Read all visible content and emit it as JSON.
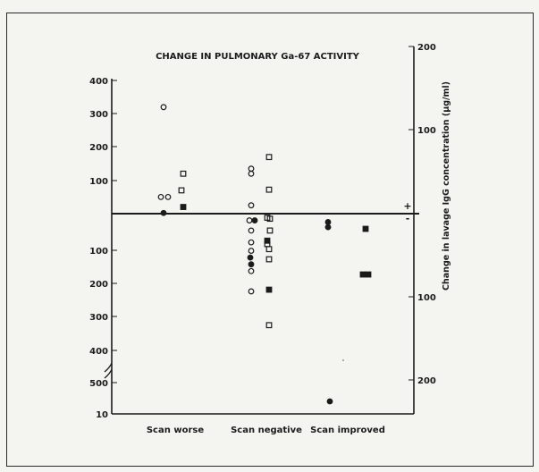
{
  "chart_data": {
    "type": "scatter",
    "title": "CHANGE IN PULMONARY Ga-67 ACTIVITY",
    "categories": [
      "Scan worse",
      "Scan negative",
      "Scan improved"
    ],
    "left_axis": {
      "upper_ticks": [
        "400",
        "300",
        "200",
        "100"
      ],
      "lower_ticks": [
        "100",
        "200",
        "300",
        "400",
        "500",
        "10",
        "10"
      ]
    },
    "right_axis": {
      "label": "Change in lavage IgG concentration (µg/ml)",
      "ticks": [
        "200",
        "100",
        "100",
        "200"
      ],
      "plus_sign": "+",
      "minus_sign": "-"
    },
    "series": [
      {
        "marker": "open-circle",
        "points": [
          {
            "cat": 0,
            "dx": -13,
            "y": 320
          },
          {
            "cat": 0,
            "dx": -16,
            "y": 50
          },
          {
            "cat": 0,
            "dx": -8,
            "y": 50
          },
          {
            "cat": 1,
            "dx": -17,
            "y": 135
          },
          {
            "cat": 1,
            "dx": -17,
            "y": 120
          },
          {
            "cat": 1,
            "dx": -17,
            "y": 25
          },
          {
            "cat": 1,
            "dx": -19,
            "y": -20
          },
          {
            "cat": 1,
            "dx": -17,
            "y": -50
          },
          {
            "cat": 1,
            "dx": -17,
            "y": -85
          },
          {
            "cat": 1,
            "dx": -17,
            "y": -110
          },
          {
            "cat": 1,
            "dx": -17,
            "y": -170
          },
          {
            "cat": 1,
            "dx": -17,
            "y": -230
          }
        ]
      },
      {
        "marker": "filled-circle",
        "points": [
          {
            "cat": 0,
            "dx": -13,
            "y": 2
          },
          {
            "cat": 1,
            "dx": -13,
            "y": -20
          },
          {
            "cat": 1,
            "dx": -18,
            "y": -130
          },
          {
            "cat": 1,
            "dx": -17,
            "y": -150
          },
          {
            "cat": 2,
            "dx": -22,
            "y": -25
          },
          {
            "cat": 2,
            "dx": -22,
            "y": -40
          },
          {
            "cat": 2,
            "dx": -20,
            "y": -560
          }
        ]
      },
      {
        "marker": "open-square",
        "points": [
          {
            "cat": 0,
            "dx": 9,
            "y": 120
          },
          {
            "cat": 0,
            "dx": 7,
            "y": 70
          },
          {
            "cat": 1,
            "dx": 3,
            "y": 170
          },
          {
            "cat": 1,
            "dx": 3,
            "y": 72
          },
          {
            "cat": 1,
            "dx": 1,
            "y": -12
          },
          {
            "cat": 1,
            "dx": 4,
            "y": -15
          },
          {
            "cat": 1,
            "dx": 4,
            "y": -50
          },
          {
            "cat": 1,
            "dx": 1,
            "y": -90
          },
          {
            "cat": 1,
            "dx": 3,
            "y": -105
          },
          {
            "cat": 1,
            "dx": 3,
            "y": -135
          },
          {
            "cat": 1,
            "dx": 3,
            "y": -330
          }
        ]
      },
      {
        "marker": "filled-square",
        "points": [
          {
            "cat": 0,
            "dx": 9,
            "y": 20
          },
          {
            "cat": 1,
            "dx": 1,
            "y": -80
          },
          {
            "cat": 1,
            "dx": 3,
            "y": -225
          },
          {
            "cat": 2,
            "dx": 20,
            "y": -45
          },
          {
            "cat": 2,
            "dx": 17,
            "y": -180
          },
          {
            "cat": 2,
            "dx": 23,
            "y": -180
          }
        ]
      }
    ]
  }
}
